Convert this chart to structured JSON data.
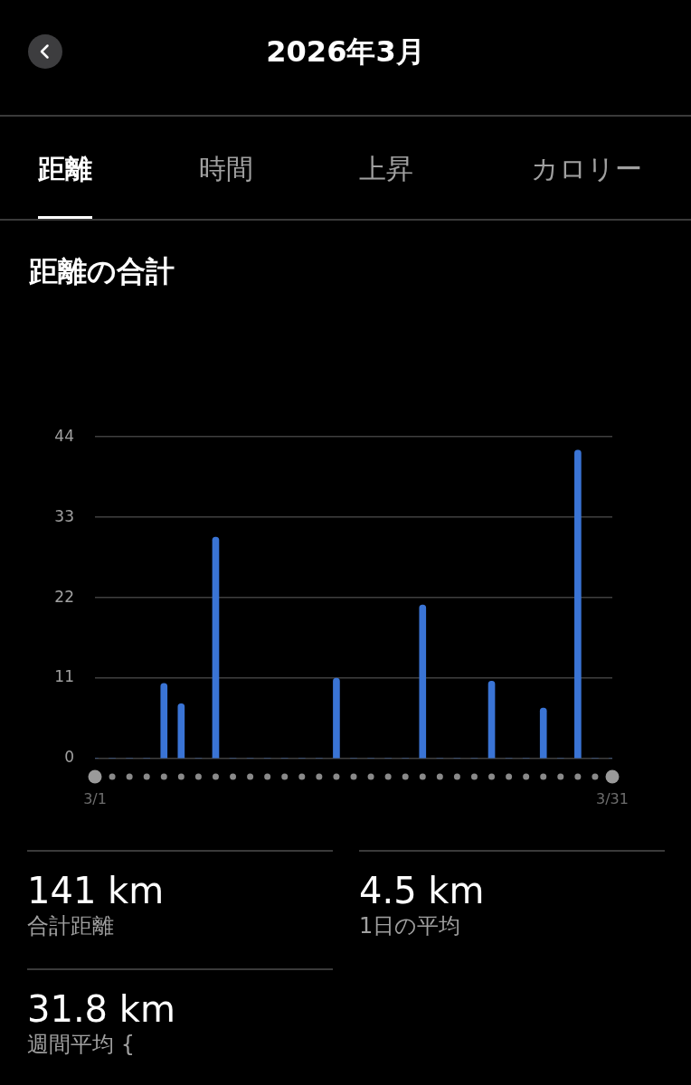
{
  "chart_data": {
    "type": "bar",
    "title": "2026年3月",
    "subtitle": "距離の合計",
    "categories": [
      "3/1",
      null,
      null,
      null,
      null,
      null,
      null,
      null,
      null,
      null,
      null,
      null,
      null,
      null,
      null,
      null,
      null,
      null,
      null,
      null,
      null,
      null,
      null,
      null,
      null,
      null,
      null,
      null,
      null,
      null,
      "3/31"
    ],
    "values": [
      0,
      0,
      0,
      0,
      10.3,
      7.5,
      0,
      30.3,
      0,
      0,
      0,
      0,
      0,
      0,
      11.0,
      0,
      0,
      0,
      0,
      21.0,
      0,
      0,
      0,
      10.6,
      0,
      0,
      6.9,
      0,
      42.2,
      0,
      0
    ],
    "color": "#3a74d5",
    "ylim": [
      0,
      44
    ],
    "yticks": [
      0,
      11,
      22,
      33,
      44
    ],
    "grid": "y",
    "legend": false,
    "annotations": [
      "距離",
      "時間",
      "上昇",
      "カロリー",
      "141 km",
      "合計距離",
      "4.5 km",
      "1日の平均",
      "31.8 km",
      "週間平均 {"
    ]
  }
}
